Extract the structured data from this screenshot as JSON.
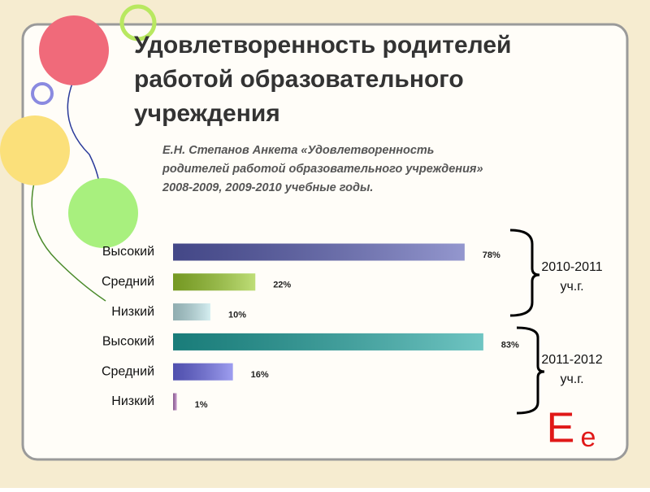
{
  "chart_data": {
    "type": "bar",
    "orientation": "horizontal",
    "title": [
      "Удовлетворенность родителей",
      "работой образовательного",
      "учреждения"
    ],
    "subtitle": [
      "Е.Н. Степанов  Анкета «Удовлетворенность",
      "родителей работой образовательного учреждения»",
      "2008-2009, 2009-2010 учебные годы."
    ],
    "categories": [
      "Высокий",
      "Средний",
      "Низкий",
      "Высокий",
      "Средний",
      "Низкий"
    ],
    "values": [
      78,
      22,
      10,
      83,
      16,
      1
    ],
    "value_labels": [
      "78%",
      "22%",
      "10%",
      "83%",
      "16%",
      "1%"
    ],
    "colors": [
      "#5a5fb4",
      "#9ccc2e",
      "#bfe6ea",
      "#22a6a2",
      "#6a6ae8",
      "#b878c0"
    ],
    "annotations": [
      [
        "2010-2011",
        "уч.г."
      ],
      [
        "2011-2012",
        "уч.г."
      ]
    ],
    "logo": [
      "Е",
      "е"
    ]
  }
}
